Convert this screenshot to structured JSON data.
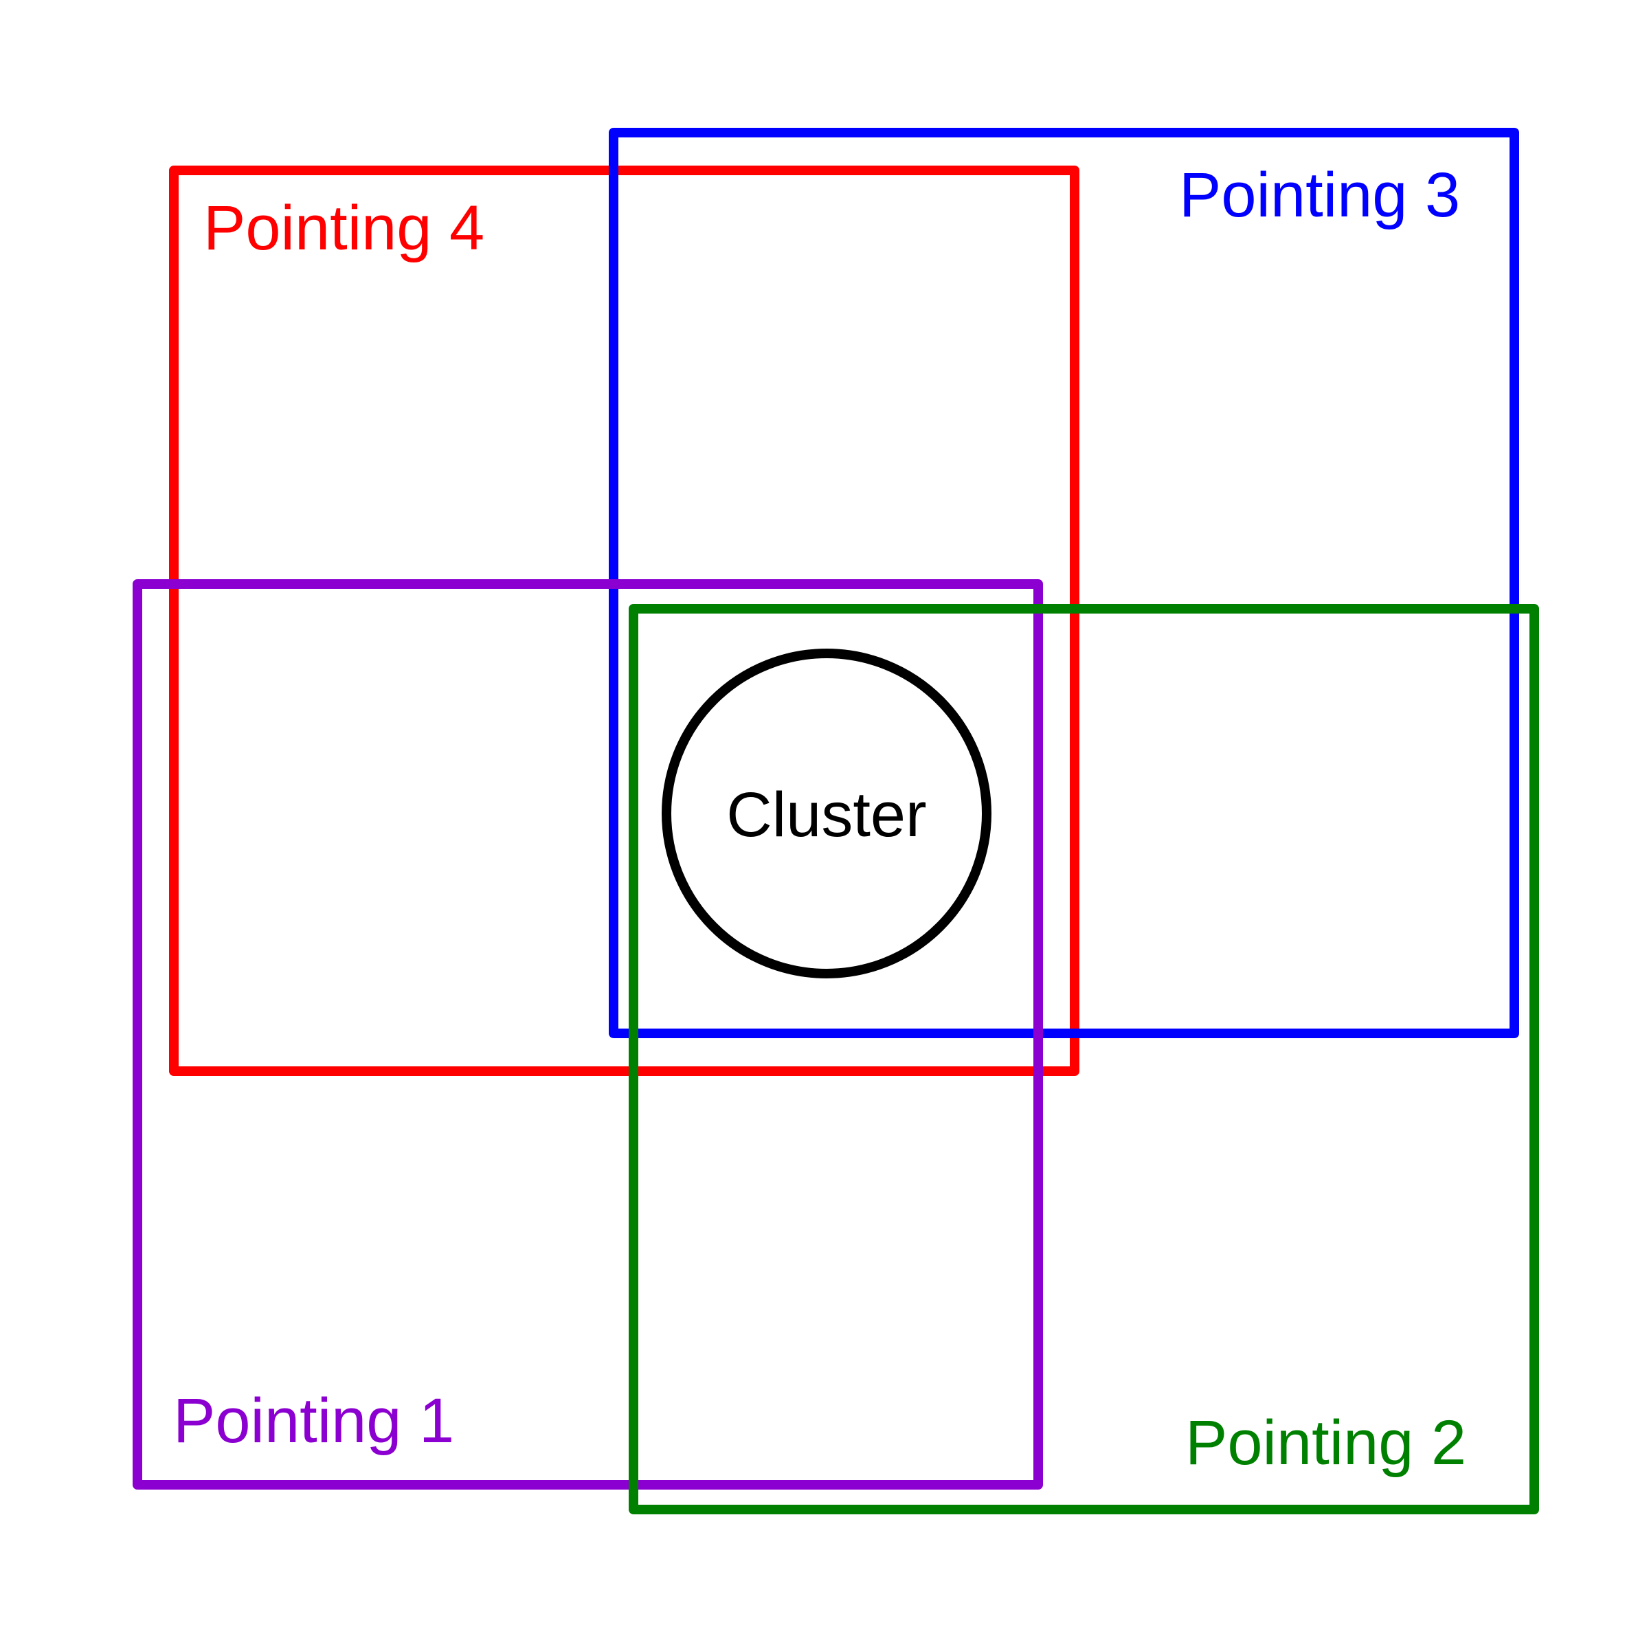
{
  "diagram": {
    "pointings": [
      {
        "id": "pointing-4",
        "label": "Pointing 4",
        "color": "#ff0000"
      },
      {
        "id": "pointing-3",
        "label": "Pointing 3",
        "color": "#0000ff"
      },
      {
        "id": "pointing-1",
        "label": "Pointing 1",
        "color": "#8b00d1"
      },
      {
        "id": "pointing-2",
        "label": "Pointing 2",
        "color": "#008000"
      }
    ],
    "cluster": {
      "label": "Cluster",
      "color": "#000000"
    }
  }
}
